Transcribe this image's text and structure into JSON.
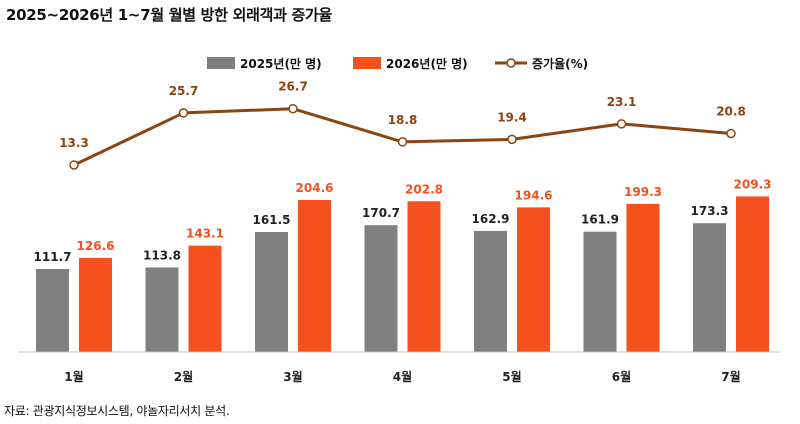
{
  "title": "2025~2026년 1~7월 월별 방한 외래객과 증가율",
  "source": "자료: 관광지식정보시스템, 야놀자리서치 분석.",
  "colors": {
    "series_2025": "#808080",
    "series_2026": "#f4511e",
    "rate_line": "#8b4513"
  },
  "chart_data": {
    "type": "bar",
    "categories": [
      "1월",
      "2월",
      "3월",
      "4월",
      "5월",
      "6월",
      "7월"
    ],
    "series": [
      {
        "name": "2025년(만 명)",
        "type": "bar",
        "values": [
          111.7,
          113.8,
          161.5,
          170.7,
          162.9,
          161.9,
          173.3
        ]
      },
      {
        "name": "2026년(만 명)",
        "type": "bar",
        "values": [
          126.6,
          143.1,
          204.6,
          202.8,
          194.6,
          199.3,
          209.3
        ]
      },
      {
        "name": "증가율(%)",
        "type": "line",
        "values": [
          13.3,
          25.7,
          26.7,
          18.8,
          19.4,
          23.1,
          20.8
        ]
      }
    ],
    "legend_position": "top-center",
    "grid": false
  }
}
